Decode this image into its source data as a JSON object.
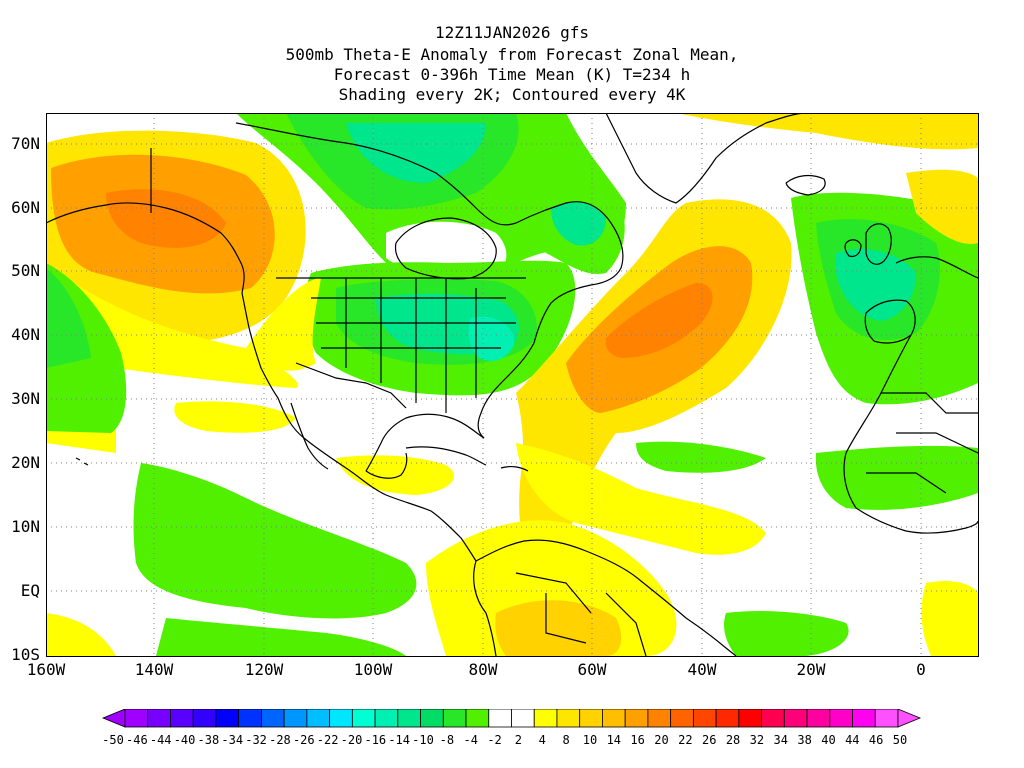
{
  "header": {
    "line1": "12Z11JAN2026 gfs",
    "line2": "500mb Theta-E Anomaly from Forecast Zonal Mean,",
    "line3": "Forecast 0-396h Time Mean (K) T=234 h",
    "line4": "Shading every 2K; Contoured every 4K"
  },
  "axes": {
    "lat_labels": [
      "70N",
      "60N",
      "50N",
      "40N",
      "30N",
      "20N",
      "10N",
      "EQ",
      "10S"
    ],
    "lon_labels": [
      "160W",
      "140W",
      "120W",
      "100W",
      "80W",
      "60W",
      "40W",
      "20W",
      "0"
    ]
  },
  "colorbar": {
    "labels": [
      "-50",
      "-46",
      "-44",
      "-40",
      "-38",
      "-34",
      "-32",
      "-28",
      "-26",
      "-22",
      "-20",
      "-16",
      "-14",
      "-10",
      "-8",
      "-4",
      "-2",
      "2",
      "4",
      "8",
      "10",
      "14",
      "16",
      "20",
      "22",
      "26",
      "28",
      "32",
      "34",
      "38",
      "40",
      "44",
      "46",
      "50"
    ],
    "colors": [
      "#a000ff",
      "#7800ff",
      "#5a00ff",
      "#3200ff",
      "#0000ff",
      "#0032ff",
      "#0064ff",
      "#0096ff",
      "#00beff",
      "#00e6ff",
      "#00ffd2",
      "#00f0b4",
      "#00e68c",
      "#00dc64",
      "#28e628",
      "#50f000",
      "#ffffff",
      "#ffffff",
      "#ffff00",
      "#ffe600",
      "#ffd200",
      "#ffbe00",
      "#ffa000",
      "#ff8200",
      "#ff6400",
      "#ff4600",
      "#ff2800",
      "#ff0000",
      "#ff0050",
      "#ff0078",
      "#ff00a0",
      "#ff00c8",
      "#ff00f0",
      "#ff50ff"
    ]
  },
  "palette": {
    "green": "#50f000",
    "green2": "#28e628",
    "teal": "#00e68c",
    "teal2": "#00f0b4",
    "yellow": "#ffff00",
    "yellow2": "#ffe600",
    "gold": "#ffd200",
    "orange": "#ffa000",
    "orange2": "#ff8200"
  }
}
